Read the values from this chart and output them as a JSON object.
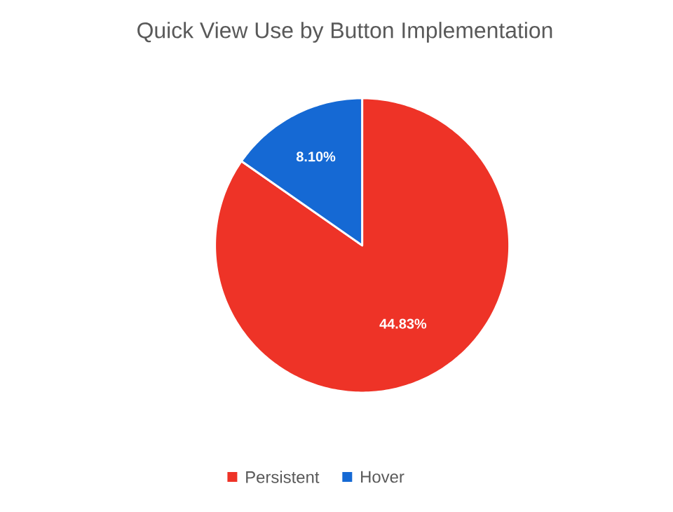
{
  "chart_data": {
    "type": "pie",
    "title": "Quick View Use by Button Implementation",
    "categories": [
      "Persistent",
      "Hover"
    ],
    "values": [
      44.83,
      8.1
    ],
    "colors": [
      "#ee3327",
      "#1569d4"
    ],
    "value_labels": [
      "44.83%",
      "8.10%"
    ],
    "legend": "bottom"
  }
}
